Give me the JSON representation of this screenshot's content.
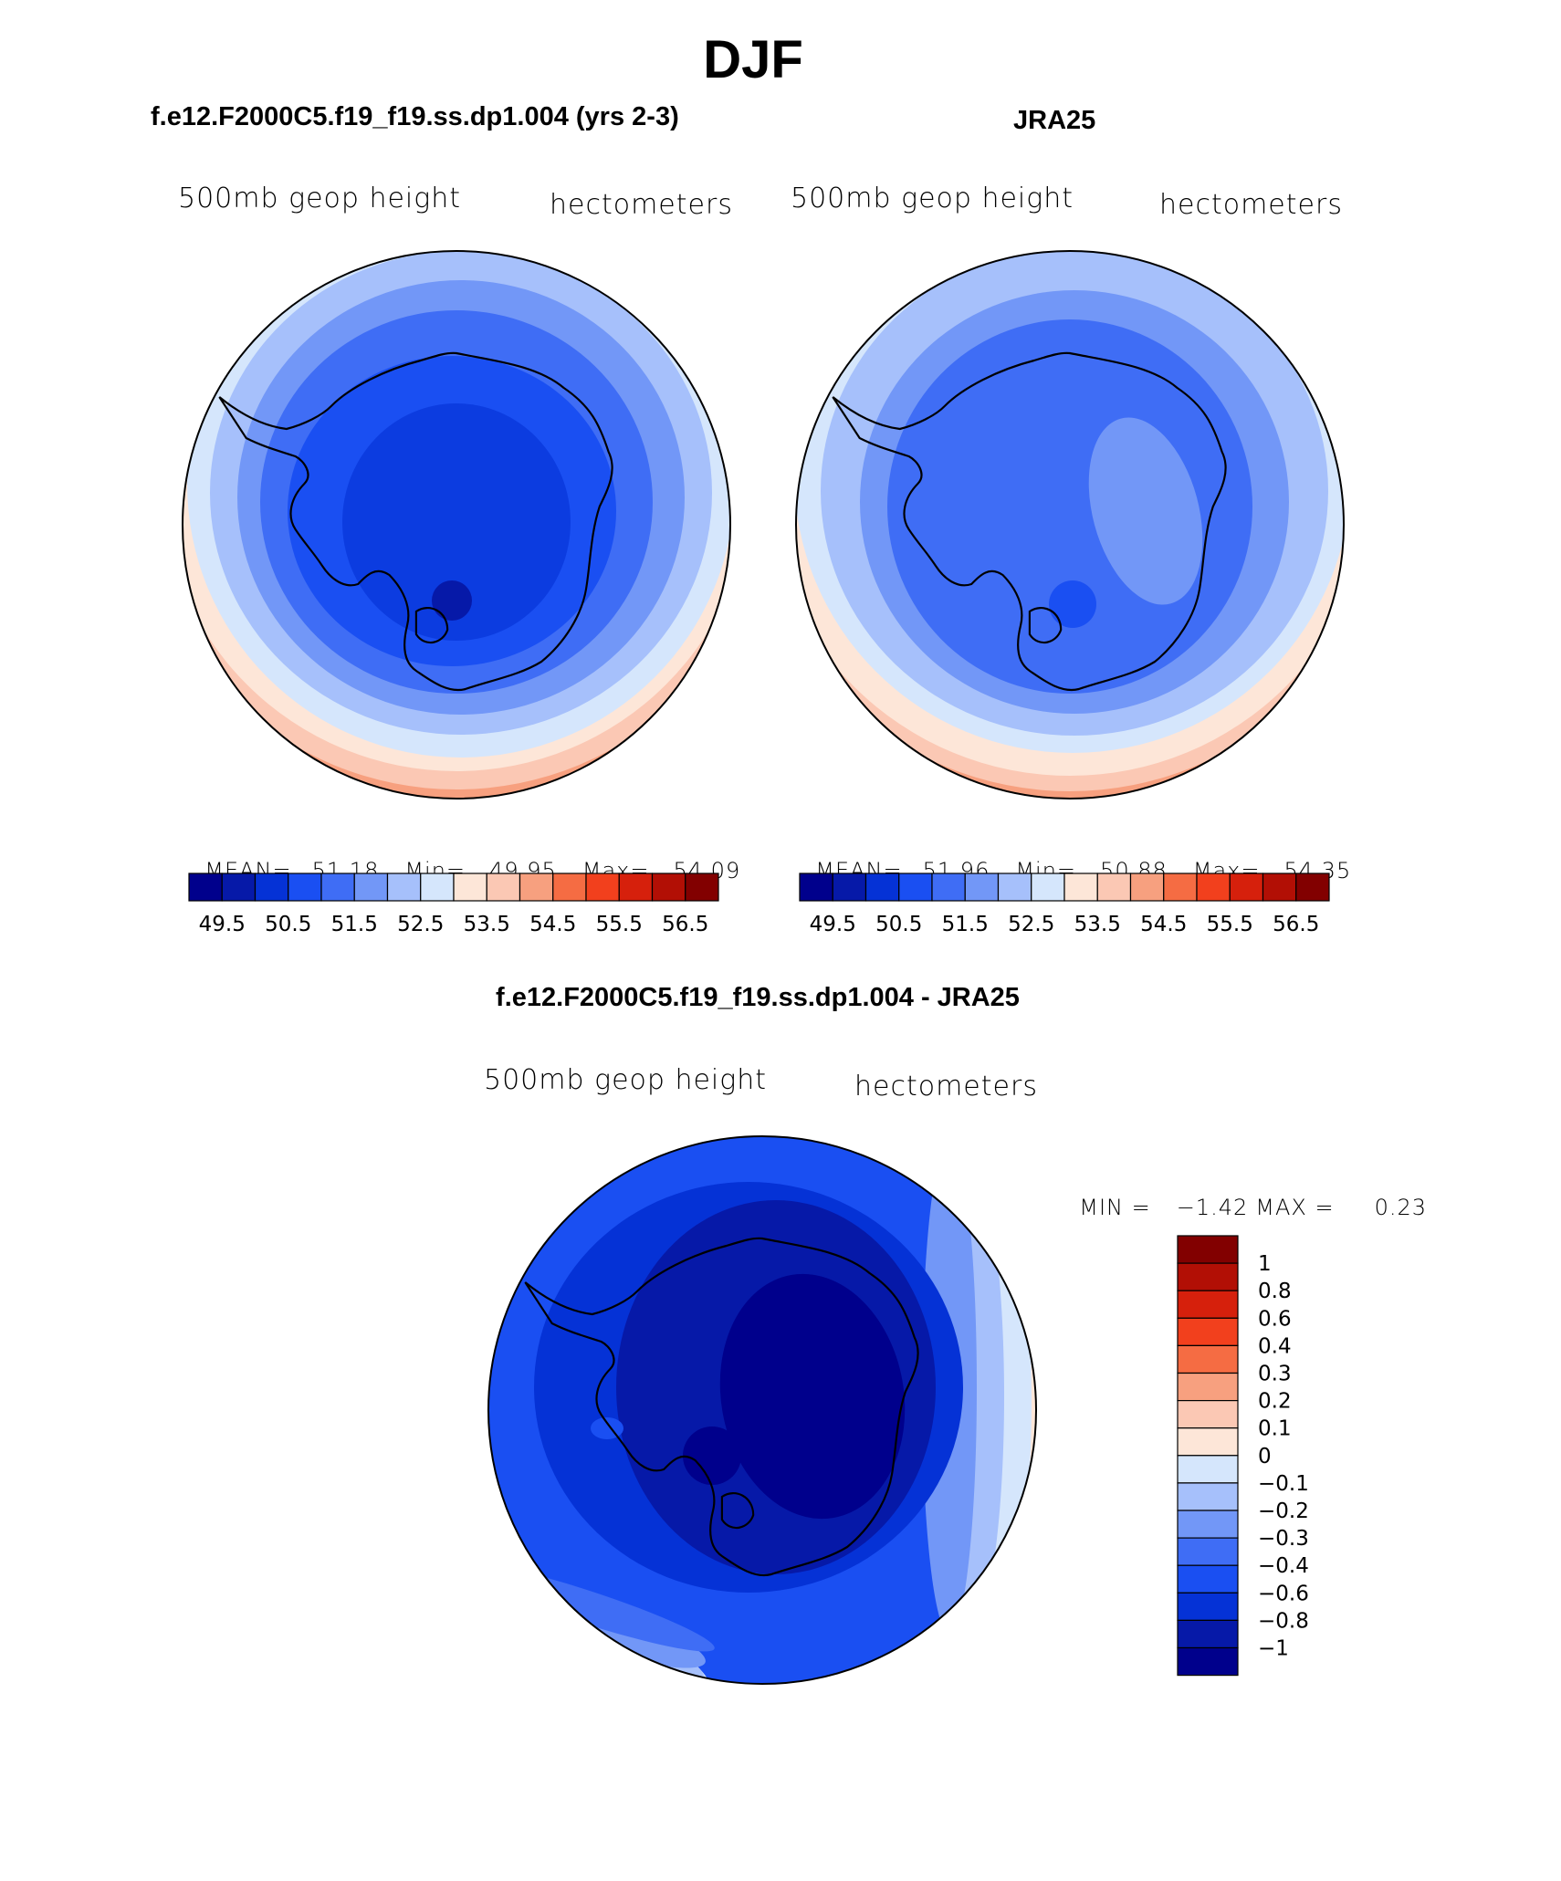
{
  "figure": {
    "title": "DJF",
    "colors": {
      "seq": [
        "#00008c",
        "#0619a8",
        "#0532d6",
        "#1a4ff2",
        "#3f6df5",
        "#7297f7",
        "#a6c0fb",
        "#d5e6fc",
        "#fde6d8",
        "#fbc8b4",
        "#f7a07f",
        "#f56c43",
        "#f2401d",
        "#d6200c",
        "#b20f05",
        "#820000"
      ],
      "diff": [
        "#00008c",
        "#0619a8",
        "#0532d6",
        "#1a4ff2",
        "#3f6df5",
        "#7297f7",
        "#a6c0fb",
        "#d5e6fc",
        "#fde6d8",
        "#fbc8b4",
        "#f7a07f",
        "#f56c43",
        "#f2401d",
        "#d6200c",
        "#b20f05",
        "#820000"
      ]
    }
  },
  "panels": {
    "left": {
      "title": "f.e12.F2000C5.f19_f19.ss.dp1.004 (yrs 2-3)",
      "variable": "500mb geop height",
      "units": "hectometers",
      "stats": {
        "mean_label": "MEAN=",
        "mean": "51.18",
        "min_label": "Min=",
        "min": "49.95",
        "max_label": "Max=",
        "max": "54.09"
      }
    },
    "right": {
      "title": "JRA25",
      "variable": "500mb geop height",
      "units": "hectometers",
      "stats": {
        "mean_label": "MEAN=",
        "mean": "51.96",
        "min_label": "Min=",
        "min": "50.88",
        "max_label": "Max=",
        "max": "54.35"
      }
    },
    "diff": {
      "title": "f.e12.F2000C5.f19_f19.ss.dp1.004 - JRA25",
      "variable": "500mb geop height",
      "units": "hectometers",
      "stats": {
        "min_label": "MIN =",
        "min": "−1.42",
        "max_label": "MAX =",
        "max": "0.23"
      }
    }
  },
  "chart_data": [
    {
      "type": "heatmap",
      "name": "model 500mb geopotential height (DJF)",
      "projection": "south polar stereographic",
      "colorbar_ticks": [
        "49.5",
        "50.5",
        "51.5",
        "52.5",
        "53.5",
        "54.5",
        "55.5",
        "56.5"
      ],
      "contour_levels": [
        49.5,
        50,
        50.5,
        51,
        51.5,
        52,
        52.5,
        53,
        53.5,
        54,
        54.5,
        55,
        55.5,
        56,
        56.5
      ],
      "mean": 51.18,
      "min": 49.95,
      "max": 54.09
    },
    {
      "type": "heatmap",
      "name": "JRA25 500mb geopotential height (DJF)",
      "projection": "south polar stereographic",
      "colorbar_ticks": [
        "49.5",
        "50.5",
        "51.5",
        "52.5",
        "53.5",
        "54.5",
        "55.5",
        "56.5"
      ],
      "contour_levels": [
        49.5,
        50,
        50.5,
        51,
        51.5,
        52,
        52.5,
        53,
        53.5,
        54,
        54.5,
        55,
        55.5,
        56,
        56.5
      ],
      "mean": 51.96,
      "min": 50.88,
      "max": 54.35
    },
    {
      "type": "heatmap",
      "name": "model - JRA25 difference",
      "projection": "south polar stereographic",
      "colorbar_ticks": [
        "1",
        "0.8",
        "0.6",
        "0.4",
        "0.3",
        "0.2",
        "0.1",
        "0",
        "−0.1",
        "−0.2",
        "−0.3",
        "−0.4",
        "−0.6",
        "−0.8",
        "−1"
      ],
      "min": -1.42,
      "max": 0.23
    }
  ]
}
